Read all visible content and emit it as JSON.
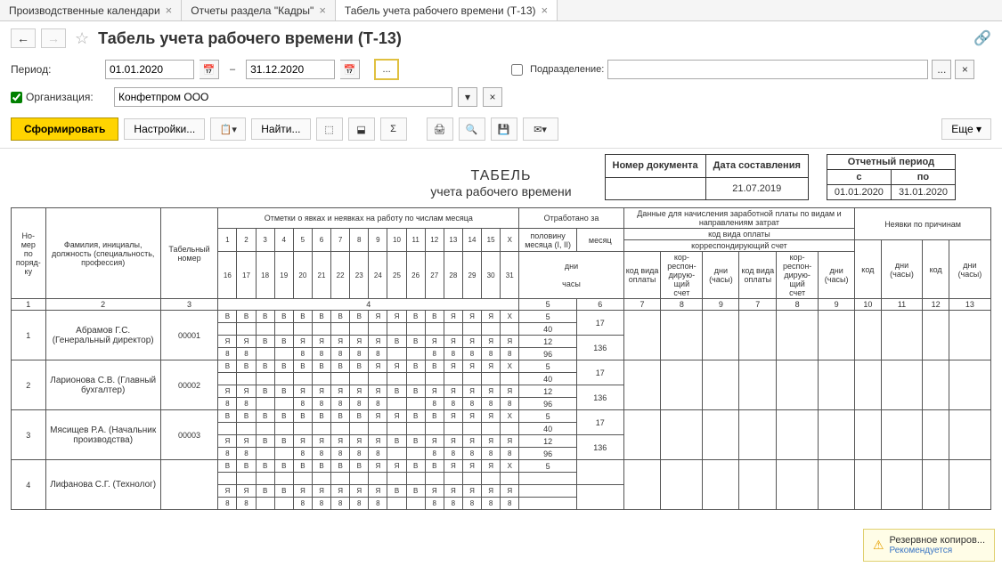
{
  "tabs": [
    {
      "label": "Производственные календари",
      "active": false
    },
    {
      "label": "Отчеты раздела \"Кадры\"",
      "active": false
    },
    {
      "label": "Табель учета рабочего времени (Т-13)",
      "active": true
    }
  ],
  "page_title": "Табель учета рабочего времени (Т-13)",
  "filters": {
    "period_label": "Период:",
    "date_from": "01.01.2020",
    "date_to": "31.12.2020",
    "subdivision_label": "Подразделение:",
    "org_label": "Организация:",
    "org_value": "Конфетпром ООО"
  },
  "toolbar": {
    "form_btn": "Сформировать",
    "settings_btn": "Настройки...",
    "find_btn": "Найти...",
    "more_btn": "Еще"
  },
  "doc_meta": {
    "doc_num_label": "Номер документа",
    "doc_date_label": "Дата составления",
    "doc_date": "21.07.2019",
    "period_label": "Отчетный период",
    "period_from_label": "с",
    "period_to_label": "по",
    "period_from": "01.01.2020",
    "period_to": "31.01.2020"
  },
  "report_title": {
    "line1": "ТАБЕЛЬ",
    "line2": "учета  рабочего времени"
  },
  "grid_headers": {
    "num": "Но-\nмер\nпо\nпоряд-\nку",
    "fio": "Фамилия, инициалы, должность (специальность, профессия)",
    "tabnum": "Табельный номер",
    "marks": "Отметки о явках и неявках на работу по числам месяца",
    "worked": "Отработано за",
    "half": "половину месяца (I, II)",
    "month": "месяц",
    "days": "дни",
    "hours": "часы",
    "payroll": "Данные для начисления заработной платы по видам и направлениям затрат",
    "paycode": "код вида оплаты",
    "corr": "корреспондирующий счет",
    "pc": "код вида оплаты",
    "ca": "кор-\nреспон-\nдирую-\nщий\nсчет",
    "dh": "дни\n(часы)",
    "absent": "Неявки по причинам",
    "kod": "код"
  },
  "day_nums_top": [
    "1",
    "2",
    "3",
    "4",
    "5",
    "6",
    "7",
    "8",
    "9",
    "10",
    "11",
    "12",
    "13",
    "14",
    "15",
    "X"
  ],
  "day_nums_bot": [
    "16",
    "17",
    "18",
    "19",
    "20",
    "21",
    "22",
    "23",
    "24",
    "25",
    "26",
    "27",
    "28",
    "29",
    "30",
    "31"
  ],
  "col_nums": [
    "1",
    "2",
    "3",
    "4",
    "5",
    "6",
    "7",
    "8",
    "9",
    "7",
    "8",
    "9",
    "10",
    "11",
    "12",
    "13"
  ],
  "employees": [
    {
      "num": "1",
      "name": "Абрамов Г.С. (Генеральный директор)",
      "tab": "00001",
      "half": [
        "5",
        "40",
        "12",
        "96"
      ],
      "month": [
        "17",
        "",
        "136",
        ""
      ]
    },
    {
      "num": "2",
      "name": "Ларионова С.В. (Главный бухгалтер)",
      "tab": "00002",
      "half": [
        "5",
        "40",
        "12",
        "96"
      ],
      "month": [
        "17",
        "",
        "136",
        ""
      ]
    },
    {
      "num": "3",
      "name": "Мясищев Р.А. (Начальник производства)",
      "tab": "00003",
      "half": [
        "5",
        "40",
        "12",
        "96"
      ],
      "month": [
        "17",
        "",
        "136",
        ""
      ]
    },
    {
      "num": "4",
      "name": "Лифанова С.Г. (Технолог)",
      "tab": "",
      "half": [
        "5",
        "",
        "",
        ""
      ],
      "month": [
        "",
        "",
        "",
        ""
      ]
    }
  ],
  "mark_row_top": [
    "В",
    "В",
    "В",
    "В",
    "В",
    "В",
    "В",
    "В",
    "Я",
    "Я",
    "В",
    "В",
    "Я",
    "Я",
    "Я",
    "X"
  ],
  "mark_row_mid": [
    "Я",
    "Я",
    "В",
    "В",
    "Я",
    "Я",
    "Я",
    "Я",
    "Я",
    "В",
    "В",
    "Я",
    "Я",
    "Я",
    "Я",
    "Я"
  ],
  "mark_row_8": [
    "8",
    "8",
    "",
    "",
    "8",
    "8",
    "8",
    "8",
    "8",
    "",
    "",
    "8",
    "8",
    "8",
    "8",
    "8"
  ],
  "notification": {
    "title": "Резервное копиров...",
    "sub": "Рекомендуется"
  }
}
